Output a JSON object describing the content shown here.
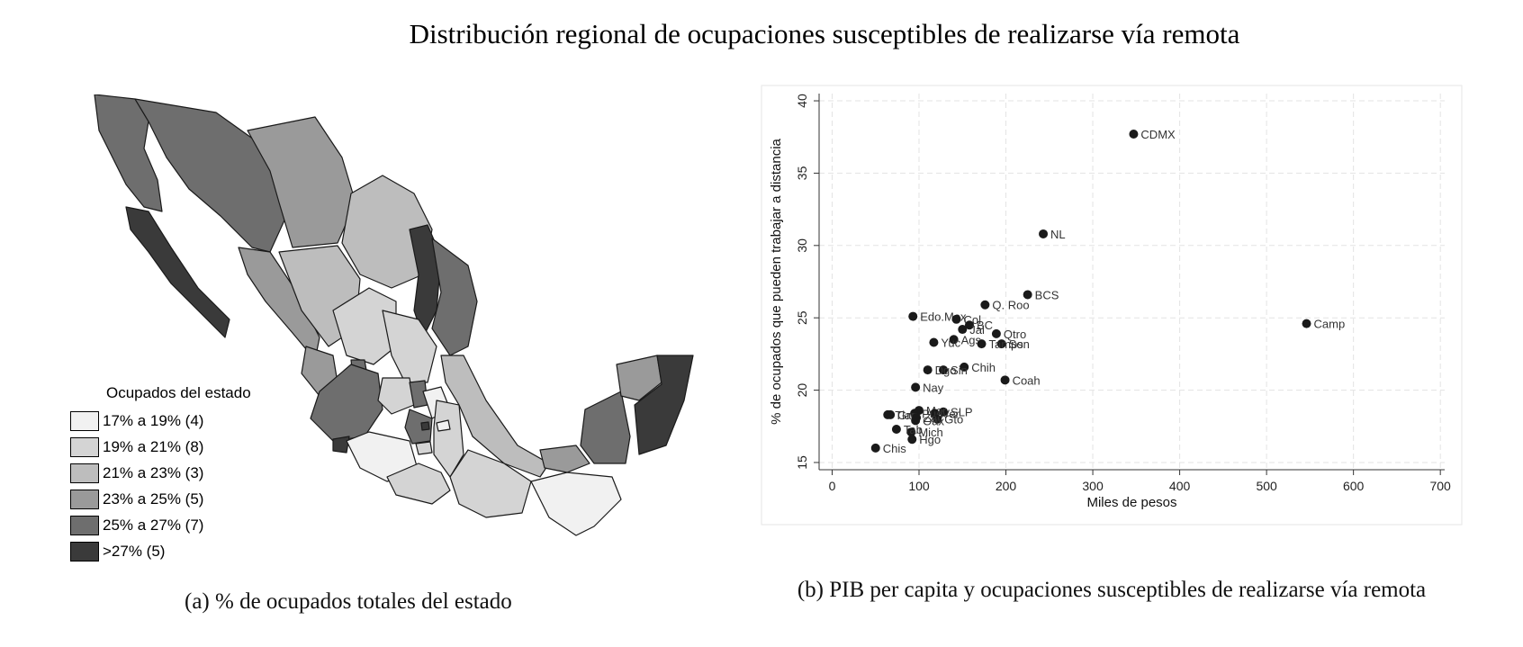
{
  "title": "Distribución regional de ocupaciones susceptibles de realizarse vía remota",
  "map_panel": {
    "caption": "(a) % de ocupados totales del estado",
    "legend": {
      "title": "Ocupados del estado",
      "items": [
        {
          "label": "17% a 19% (4)",
          "color": "#f1f1f1"
        },
        {
          "label": "19% a 21% (8)",
          "color": "#d4d4d4"
        },
        {
          "label": "21% a 23% (3)",
          "color": "#bdbdbd"
        },
        {
          "label": "23% a 25% (5)",
          "color": "#9a9a9a"
        },
        {
          "label": "25% a 27% (7)",
          "color": "#6e6e6e"
        },
        {
          "label": ">27% (5)",
          "color": "#3a3a3a"
        }
      ]
    }
  },
  "scatter_panel": {
    "caption": "(b) PIB per capita y ocupaciones susceptibles de realizarse vía remota"
  },
  "chart_data": {
    "type": "scatter",
    "xlabel": "Miles de pesos",
    "ylabel": "% de ocupados que pueden trabajar a distancia",
    "xlim": [
      -15,
      705
    ],
    "ylim": [
      14.5,
      40.5
    ],
    "xticks": [
      0,
      100,
      200,
      300,
      400,
      500,
      600,
      700
    ],
    "yticks": [
      15,
      20,
      25,
      30,
      35,
      40
    ],
    "grid": true,
    "points": [
      {
        "label": "CDMX",
        "x": 347,
        "y": 37.7
      },
      {
        "label": "NL",
        "x": 243,
        "y": 30.8
      },
      {
        "label": "BCS",
        "x": 225,
        "y": 26.6
      },
      {
        "label": "Camp",
        "x": 546,
        "y": 24.6
      },
      {
        "label": "Q. Roo",
        "x": 176,
        "y": 25.9
      },
      {
        "label": "Edo.Mex",
        "x": 93,
        "y": 25.1
      },
      {
        "label": "Col",
        "x": 143,
        "y": 24.9
      },
      {
        "label": "BC",
        "x": 158,
        "y": 24.5
      },
      {
        "label": "Jal",
        "x": 150,
        "y": 24.2
      },
      {
        "label": "Qtro",
        "x": 189,
        "y": 23.9
      },
      {
        "label": "Ags",
        "x": 140,
        "y": 23.5
      },
      {
        "label": "Yuc",
        "x": 117,
        "y": 23.3
      },
      {
        "label": "Son",
        "x": 195,
        "y": 23.2
      },
      {
        "label": "Tamps",
        "x": 172,
        "y": 23.2
      },
      {
        "label": "Chih",
        "x": 152,
        "y": 21.6
      },
      {
        "label": "Sin",
        "x": 128,
        "y": 21.4
      },
      {
        "label": "Dgo",
        "x": 110,
        "y": 21.4
      },
      {
        "label": "Coah",
        "x": 199,
        "y": 20.7
      },
      {
        "label": "Nay",
        "x": 96,
        "y": 20.2
      },
      {
        "label": "SLP",
        "x": 128,
        "y": 18.5
      },
      {
        "label": "Mor",
        "x": 100,
        "y": 18.6
      },
      {
        "label": "Ver",
        "x": 118,
        "y": 18.4
      },
      {
        "label": "Pue",
        "x": 95,
        "y": 18.4
      },
      {
        "label": "Gro",
        "x": 67,
        "y": 18.3
      },
      {
        "label": "Tlax",
        "x": 64,
        "y": 18.3
      },
      {
        "label": "Gto",
        "x": 121,
        "y": 18.0
      },
      {
        "label": "Oax",
        "x": 96,
        "y": 17.9
      },
      {
        "label": "Zac",
        "x": 97,
        "y": 18.1
      },
      {
        "label": "Mich",
        "x": 91,
        "y": 17.1
      },
      {
        "label": "Tab",
        "x": 74,
        "y": 17.3
      },
      {
        "label": "Hgo",
        "x": 92,
        "y": 16.6
      },
      {
        "label": "Chis",
        "x": 50,
        "y": 16.0
      }
    ]
  }
}
